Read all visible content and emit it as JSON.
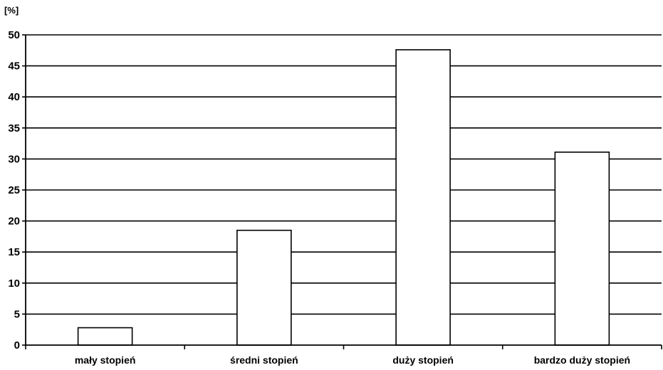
{
  "chart_data": {
    "type": "bar",
    "y_unit_label": "[%]",
    "categories": [
      "mały stopień",
      "średni stopień",
      "duży stopień",
      "bardzo duży stopień"
    ],
    "values": [
      2.8,
      18.5,
      47.6,
      31.1
    ],
    "ylim": [
      0,
      50
    ],
    "yticks": [
      0,
      5,
      10,
      15,
      20,
      25,
      30,
      35,
      40,
      45,
      50
    ],
    "grid": true,
    "legend": "none",
    "title": "",
    "xlabel": "",
    "ylabel": "",
    "colors": {
      "bar_fill": "#ffffff",
      "bar_stroke": "#000000",
      "grid": "#000000",
      "axis": "#000000"
    }
  }
}
